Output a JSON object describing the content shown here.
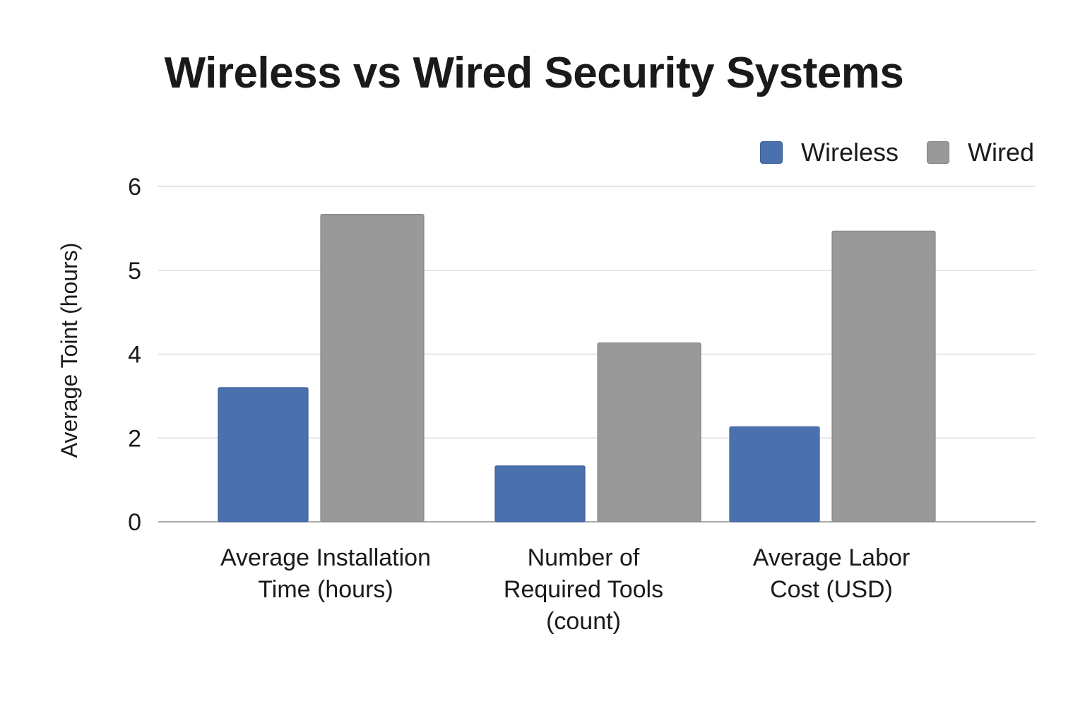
{
  "chart_data": {
    "type": "bar",
    "title": "Wireless vs Wired Security Systems",
    "xlabel": "",
    "ylabel": "Average Toint (hours)",
    "categories": [
      "Average Installation Time (hours)",
      "Number of Required Tools (count)",
      "Average Labor Cost (USD)"
    ],
    "series": [
      {
        "name": "Wireless",
        "color": "#4a71ae",
        "values": [
          2.4,
          1.0,
          1.7
        ]
      },
      {
        "name": "Wired",
        "color": "#999999",
        "values": [
          5.5,
          3.2,
          5.2
        ]
      }
    ],
    "y_ticks": [
      "0",
      "2",
      "4",
      "5",
      "6"
    ],
    "ylim": [
      0,
      6
    ],
    "grid": true,
    "legend_position": "top-right"
  }
}
